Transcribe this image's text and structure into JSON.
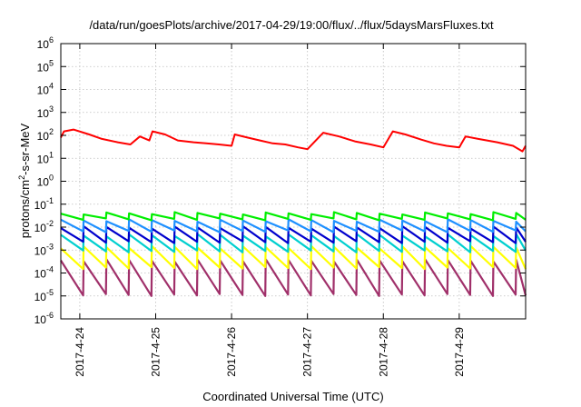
{
  "chart_data": {
    "type": "line",
    "title": "/data/run/goesPlots/archive/2017-04-29/19:00/flux/../flux/5daysMarsFluxes.txt",
    "xlabel": "Coordinated Universal Time (UTC)",
    "ylabel_main": "protons/cm",
    "ylabel_sup": "2",
    "ylabel_tail": "-s-sr-MeV",
    "y_scale": "log",
    "ylim": [
      1e-06,
      1000000.0
    ],
    "xlim": [
      "2017-04-23T18:00",
      "2017-04-29T21:00"
    ],
    "grid": true,
    "legend": "none",
    "x_ticks": [
      {
        "label": "2017-4-24",
        "value": "2017-04-24T00:00"
      },
      {
        "label": "2017-4-25",
        "value": "2017-04-25T00:00"
      },
      {
        "label": "2017-4-26",
        "value": "2017-04-26T00:00"
      },
      {
        "label": "2017-4-27",
        "value": "2017-04-27T00:00"
      },
      {
        "label": "2017-4-28",
        "value": "2017-04-28T00:00"
      },
      {
        "label": "2017-4-29",
        "value": "2017-04-29T00:00"
      }
    ],
    "y_ticks": [
      {
        "base": "10",
        "exp": "-6",
        "value": 1e-06
      },
      {
        "base": "10",
        "exp": "-5",
        "value": 1e-05
      },
      {
        "base": "10",
        "exp": "-4",
        "value": 0.0001
      },
      {
        "base": "10",
        "exp": "-3",
        "value": 0.001
      },
      {
        "base": "10",
        "exp": "-2",
        "value": 0.01
      },
      {
        "base": "10",
        "exp": "-1",
        "value": 0.1
      },
      {
        "base": "10",
        "exp": "0",
        "value": 1
      },
      {
        "base": "10",
        "exp": "1",
        "value": 10
      },
      {
        "base": "10",
        "exp": "2",
        "value": 100
      },
      {
        "base": "10",
        "exp": "3",
        "value": 1000
      },
      {
        "base": "10",
        "exp": "4",
        "value": 10000
      },
      {
        "base": "10",
        "exp": "5",
        "value": 100000
      },
      {
        "base": "10",
        "exp": "6",
        "value": 1000000
      }
    ],
    "series": [
      {
        "color": "#ff0000",
        "x": [
          "2017-04-23T18:00",
          "2017-04-23T19:00",
          "2017-04-23T22:00",
          "2017-04-24T03:00",
          "2017-04-24T07:00",
          "2017-04-24T12:00",
          "2017-04-24T16:00",
          "2017-04-24T19:00",
          "2017-04-24T22:00",
          "2017-04-24T23:00",
          "2017-04-25T03:00",
          "2017-04-25T07:00",
          "2017-04-25T12:00",
          "2017-04-25T16:00",
          "2017-04-25T20:00",
          "2017-04-26T00:00",
          "2017-04-26T01:00",
          "2017-04-26T05:00",
          "2017-04-26T09:00",
          "2017-04-26T13:00",
          "2017-04-26T17:00",
          "2017-04-26T21:00",
          "2017-04-27T00:00",
          "2017-04-27T05:00",
          "2017-04-27T10:00",
          "2017-04-27T15:00",
          "2017-04-27T20:00",
          "2017-04-28T00:00",
          "2017-04-28T03:00",
          "2017-04-28T07:00",
          "2017-04-28T12:00",
          "2017-04-28T16:00",
          "2017-04-28T20:00",
          "2017-04-29T00:00",
          "2017-04-29T02:00",
          "2017-04-29T06:00",
          "2017-04-29T12:00",
          "2017-04-29T17:00",
          "2017-04-29T20:00",
          "2017-04-29T21:00"
        ],
        "y": [
          80,
          150,
          180,
          110,
          70,
          50,
          40,
          90,
          60,
          150,
          110,
          60,
          50,
          45,
          40,
          35,
          110,
          80,
          60,
          45,
          40,
          30,
          25,
          130,
          90,
          55,
          40,
          30,
          150,
          110,
          65,
          45,
          35,
          30,
          90,
          70,
          50,
          35,
          20,
          35
        ]
      },
      {
        "color": "#00ee00",
        "lo": 0.02,
        "hi": 0.045
      },
      {
        "color": "#1e90ff",
        "lo": 0.006,
        "hi": 0.022
      },
      {
        "color": "#0000cd",
        "lo": 0.002,
        "hi": 0.011
      },
      {
        "color": "#00cfcf",
        "lo": 0.0008,
        "hi": 0.005
      },
      {
        "color": "#ffff00",
        "lo": 0.00015,
        "hi": 0.0015
      },
      {
        "color": "#a0306a",
        "lo": 1e-05,
        "hi": 0.0004
      }
    ],
    "sawtooth_period_hours": 7.2
  }
}
